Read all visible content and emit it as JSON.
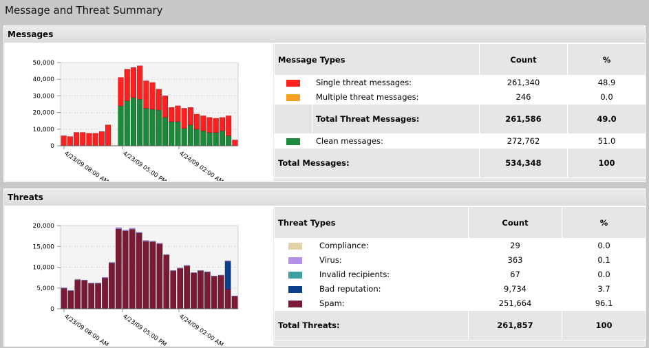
{
  "page": {
    "title": "Message and Threat Summary"
  },
  "messages": {
    "header": "Messages",
    "columns": {
      "type": "Message Types",
      "count": "Count",
      "pct": "%"
    },
    "rows": [
      {
        "label": "Single threat messages:",
        "count": "261,340",
        "pct": "48.9",
        "color": "#ff2020"
      },
      {
        "label": "Multiple threat messages:",
        "count": "246",
        "pct": "0.0",
        "color": "#f5a020"
      }
    ],
    "subtotal": {
      "label": "Total Threat Messages:",
      "count": "261,586",
      "pct": "49.0"
    },
    "clean": {
      "label": "Clean messages:",
      "count": "272,762",
      "pct": "51.0",
      "color": "#1a8a3a"
    },
    "total": {
      "label": "Total Messages:",
      "count": "534,348",
      "pct": "100"
    }
  },
  "threats": {
    "header": "Threats",
    "columns": {
      "type": "Threat Types",
      "count": "Count",
      "pct": "%"
    },
    "rows": [
      {
        "label": "Compliance:",
        "count": "29",
        "pct": "0.0",
        "color": "#e3d3a8"
      },
      {
        "label": "Virus:",
        "count": "363",
        "pct": "0.1",
        "color": "#b48fe8"
      },
      {
        "label": "Invalid recipients:",
        "count": "67",
        "pct": "0.0",
        "color": "#3fa0a0"
      },
      {
        "label": "Bad reputation:",
        "count": "9,734",
        "pct": "3.7",
        "color": "#0b3f8a"
      },
      {
        "label": "Spam:",
        "count": "251,664",
        "pct": "96.1",
        "color": "#7a1a35"
      }
    ],
    "total": {
      "label": "Total Threats:",
      "count": "261,857",
      "pct": "100"
    }
  },
  "chart_data": [
    {
      "type": "bar",
      "stacked": true,
      "ylim": [
        0,
        50000
      ],
      "yticks": [
        "0",
        "10,000",
        "20,000",
        "30,000",
        "40,000",
        "50,000"
      ],
      "xticks": [
        "4/23/09 08:00 AM",
        "4/23/09 05:00 PM",
        "4/24/09 02:00 AM"
      ],
      "series": [
        {
          "name": "Clean messages",
          "color": "#1a8a3a",
          "values": [
            0,
            0,
            0,
            0,
            0,
            0,
            0,
            0,
            0,
            24000,
            27000,
            29000,
            28000,
            22500,
            22000,
            21500,
            17000,
            14500,
            14500,
            10500,
            12500,
            10000,
            9000,
            8000,
            8000,
            9000,
            6000,
            0
          ]
        },
        {
          "name": "Single threat messages",
          "color": "#ff2020",
          "values": [
            6000,
            5500,
            8000,
            8000,
            7500,
            7500,
            8500,
            12500,
            0,
            17000,
            19000,
            18000,
            20000,
            16500,
            16000,
            12500,
            13000,
            8500,
            9500,
            12000,
            10500,
            9000,
            9000,
            9000,
            8500,
            8000,
            12000,
            3500
          ]
        }
      ]
    },
    {
      "type": "bar",
      "stacked": true,
      "ylim": [
        0,
        20000
      ],
      "yticks": [
        "0",
        "5,000",
        "10,000",
        "15,000",
        "20,000"
      ],
      "xticks": [
        "4/23/09 08:00 AM",
        "4/23/09 05:00 PM",
        "4/24/09 02:00 AM"
      ],
      "series": [
        {
          "name": "Spam",
          "color": "#7a1a35",
          "values": [
            4900,
            4300,
            6900,
            6800,
            6100,
            6100,
            7400,
            11000,
            19200,
            18700,
            19100,
            18200,
            16200,
            16100,
            15600,
            12900,
            9100,
            9700,
            10300,
            8600,
            9100,
            8800,
            7800,
            8000,
            4700,
            3000
          ]
        },
        {
          "name": "Bad reputation",
          "color": "#0b3f8a",
          "values": [
            0,
            0,
            0,
            0,
            0,
            0,
            0,
            0,
            0,
            0,
            0,
            0,
            0,
            0,
            0,
            0,
            0,
            0,
            0,
            0,
            0,
            0,
            0,
            0,
            6700,
            0
          ]
        },
        {
          "name": "Virus",
          "color": "#b48fe8",
          "values": [
            150,
            100,
            150,
            100,
            100,
            100,
            150,
            150,
            300,
            200,
            250,
            200,
            200,
            150,
            150,
            150,
            100,
            100,
            150,
            100,
            100,
            100,
            100,
            100,
            150,
            100
          ]
        },
        {
          "name": "Compliance",
          "color": "#e3d3a8",
          "values": [
            0,
            0,
            50,
            0,
            0,
            0,
            0,
            0,
            0,
            0,
            0,
            0,
            0,
            0,
            0,
            0,
            0,
            0,
            0,
            0,
            0,
            0,
            0,
            0,
            0,
            0
          ]
        }
      ]
    }
  ]
}
